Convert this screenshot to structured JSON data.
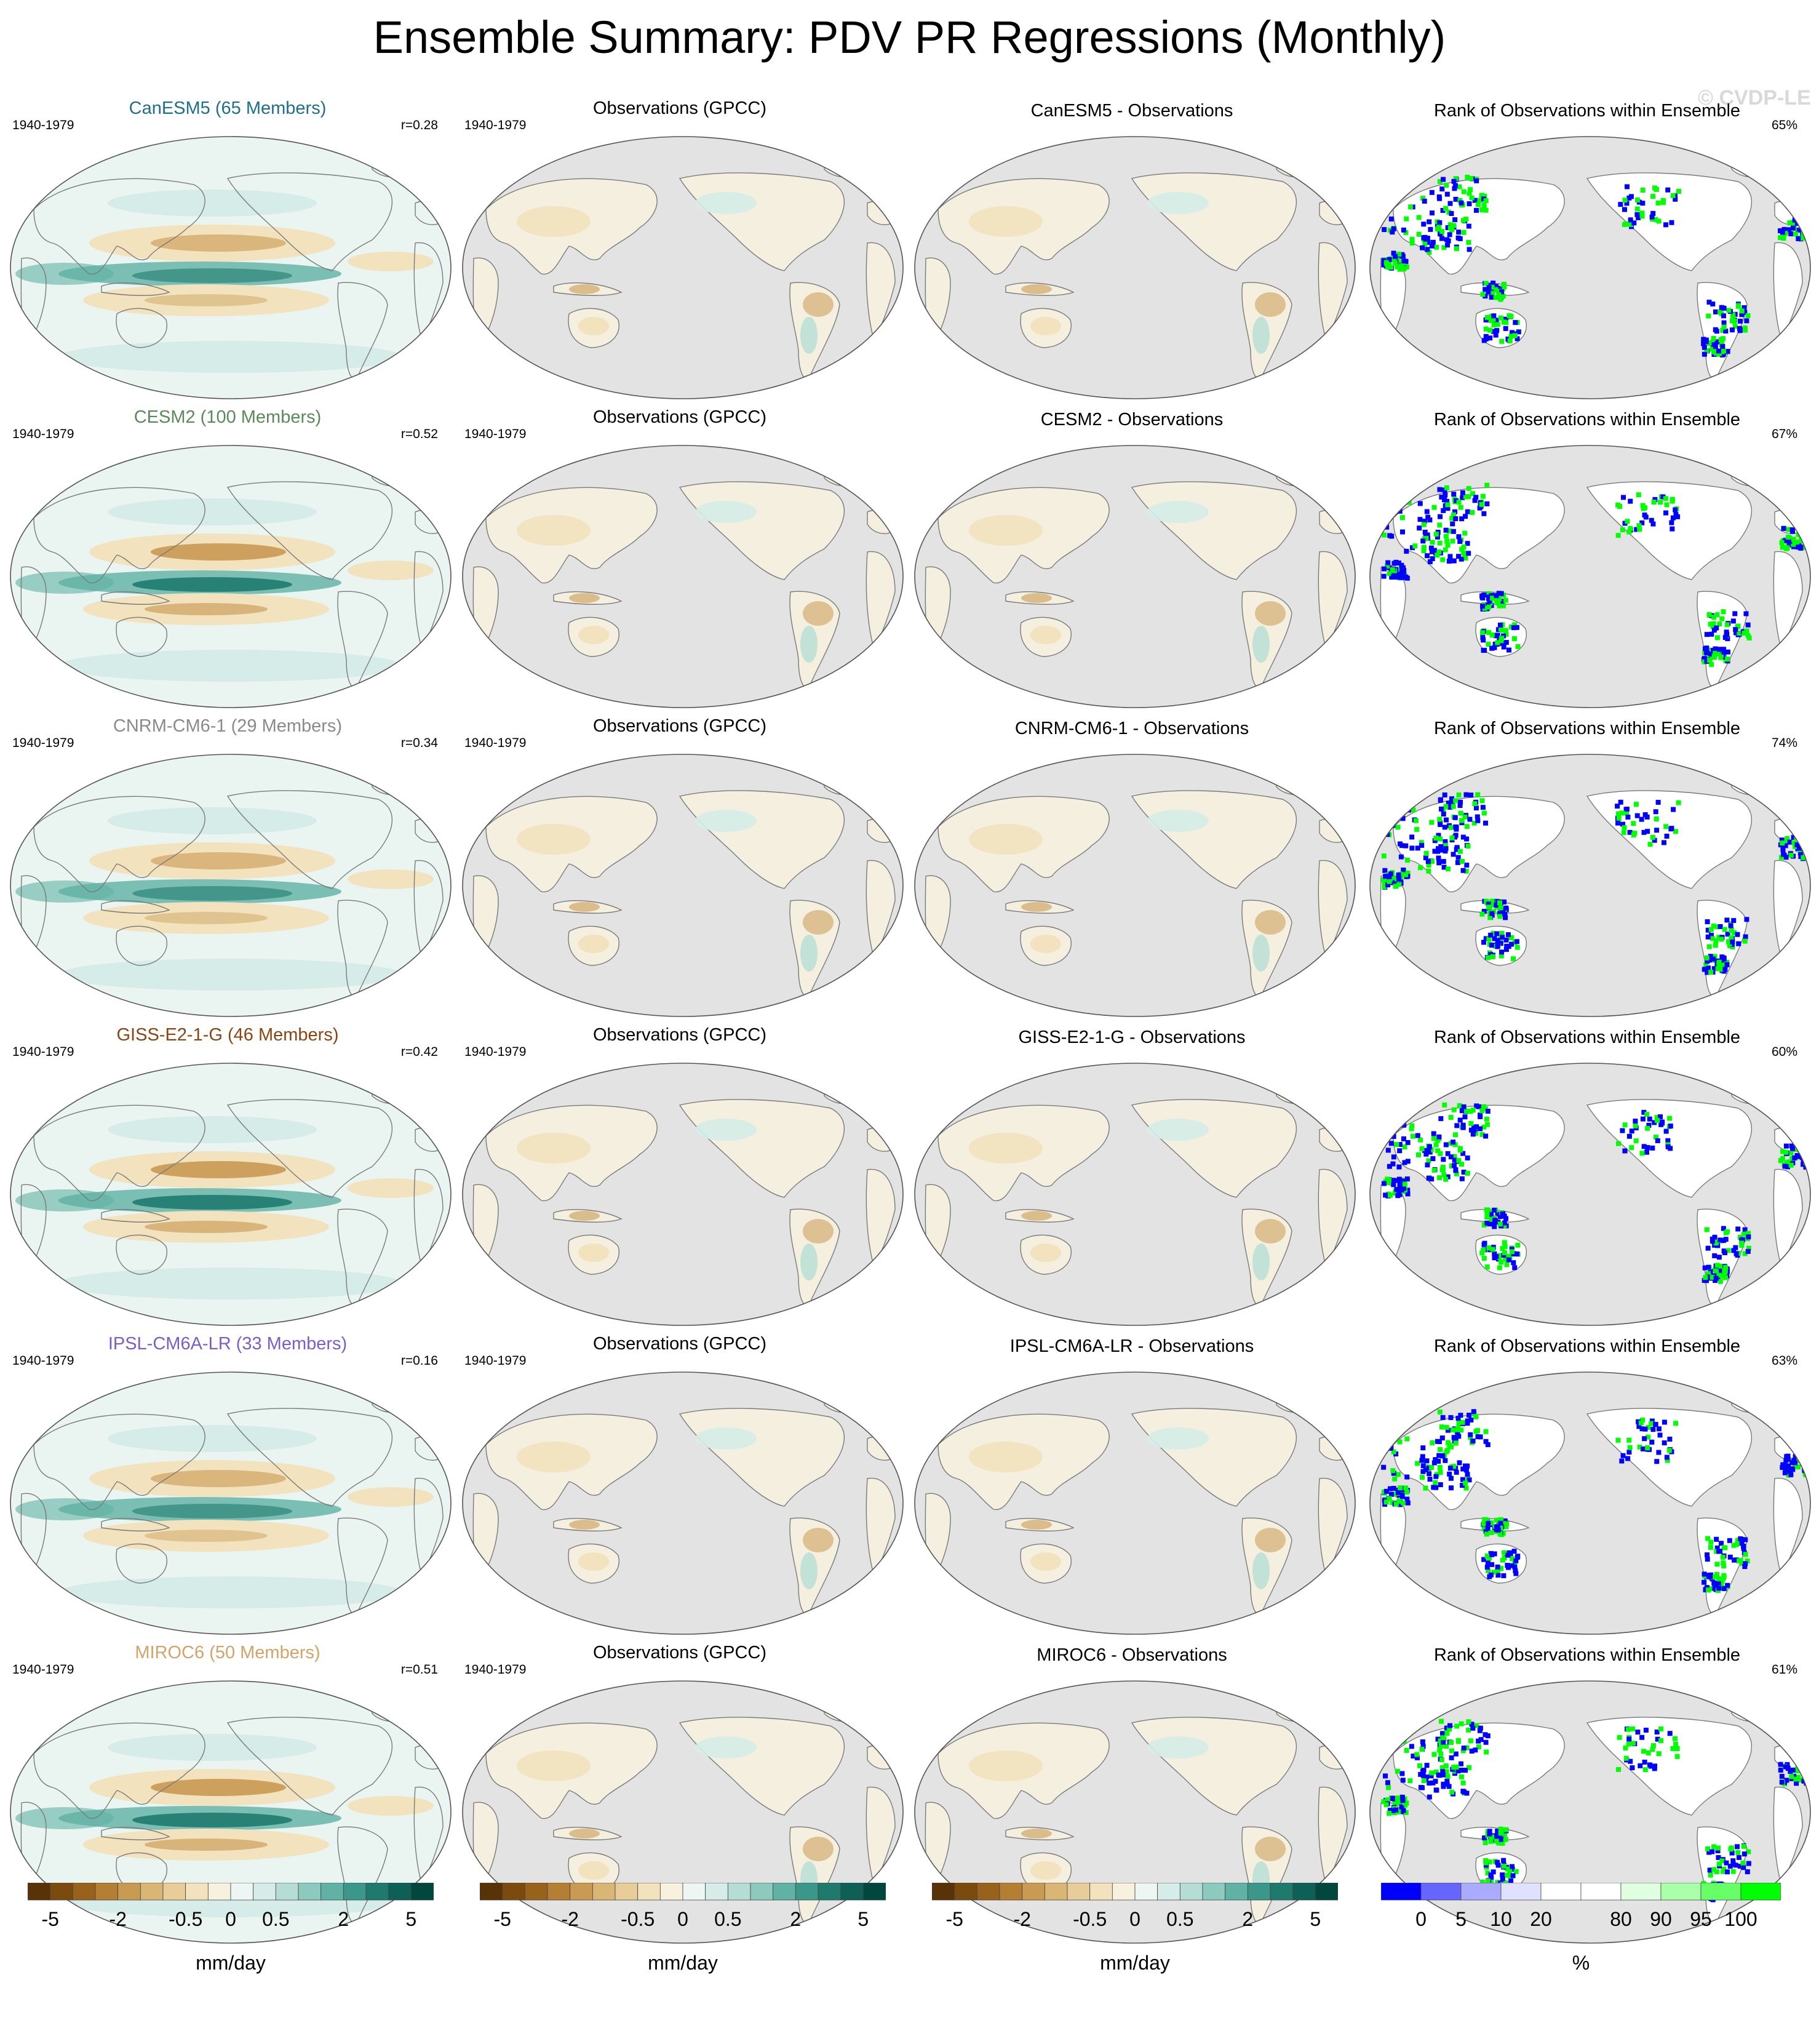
{
  "title": "Ensemble Summary: PDV PR Regressions (Monthly)",
  "watermark": "© CVDP-LE",
  "rows": [
    {
      "model_title": "CanESM5 (65 Members)",
      "model_color": "#1f6f8b",
      "period": "1940-1979",
      "r": "r=0.28",
      "obs_title": "Observations (GPCC)",
      "diff_title": "CanESM5 - Observations",
      "rank_title": "Rank of Observations within Ensemble",
      "rank_pct": "65%"
    },
    {
      "model_title": "CESM2 (100 Members)",
      "model_color": "#5a8a5a",
      "period": "1940-1979",
      "r": "r=0.52",
      "obs_title": "Observations (GPCC)",
      "diff_title": "CESM2 - Observations",
      "rank_title": "Rank of Observations within Ensemble",
      "rank_pct": "67%"
    },
    {
      "model_title": "CNRM-CM6-1 (29 Members)",
      "model_color": "#8a8a8a",
      "period": "1940-1979",
      "r": "r=0.34",
      "obs_title": "Observations (GPCC)",
      "diff_title": "CNRM-CM6-1 - Observations",
      "rank_title": "Rank of Observations within Ensemble",
      "rank_pct": "74%"
    },
    {
      "model_title": "GISS-E2-1-G (46 Members)",
      "model_color": "#8b4513",
      "period": "1940-1979",
      "r": "r=0.42",
      "obs_title": "Observations (GPCC)",
      "diff_title": "GISS-E2-1-G - Observations",
      "rank_title": "Rank of Observations within Ensemble",
      "rank_pct": "60%"
    },
    {
      "model_title": "IPSL-CM6A-LR (33 Members)",
      "model_color": "#7b5fc6",
      "period": "1940-1979",
      "r": "r=0.16",
      "obs_title": "Observations (GPCC)",
      "diff_title": "IPSL-CM6A-LR - Observations",
      "rank_title": "Rank of Observations within Ensemble",
      "rank_pct": "63%"
    },
    {
      "model_title": "MIROC6 (50 Members)",
      "model_color": "#d2a46a",
      "period": "1940-1979",
      "r": "r=0.51",
      "obs_title": "Observations (GPCC)",
      "diff_title": "MIROC6 - Observations",
      "rank_title": "Rank of Observations within Ensemble",
      "rank_pct": "61%"
    }
  ],
  "colorbars": {
    "brbg": {
      "colors": [
        "#5a3207",
        "#7b4a0d",
        "#98621b",
        "#b47f33",
        "#c99a52",
        "#dab675",
        "#e8cd98",
        "#f2e2bd",
        "#f8f1e0",
        "#eef6f4",
        "#d6ece8",
        "#b5ddd5",
        "#8ccabe",
        "#5fb2a4",
        "#3a978a",
        "#1f7a6e",
        "#0c6055",
        "#00483e"
      ],
      "ticks": [
        "-5",
        "-2",
        "-0.5",
        "0",
        "0.5",
        "2",
        "5"
      ],
      "tick_positions": [
        1,
        4,
        7,
        9,
        11,
        14,
        17
      ],
      "label": "mm/day"
    },
    "rank": {
      "colors": [
        "#0000ff",
        "#6666ff",
        "#aaaaff",
        "#e0e0ff",
        "#ffffff",
        "#ffffff",
        "#e0ffe0",
        "#aaffaa",
        "#66ff66",
        "#00ff00"
      ],
      "ticks": [
        "0",
        "5",
        "10",
        "20",
        "80",
        "90",
        "95",
        "100"
      ],
      "tick_positions": [
        1,
        2,
        3,
        4,
        6,
        7,
        8,
        9
      ],
      "label": "%"
    }
  },
  "map_colors": {
    "ocean_model": "#eaf5f2",
    "land_gray": "#e3e3e3",
    "coast": "#7a7a7a",
    "brown": "#c99a52",
    "tan": "#f2e2bd",
    "teal": "#5fb2a4",
    "dark_teal": "#1f7a6e",
    "blue": "#0000ff",
    "green": "#00ff00"
  }
}
